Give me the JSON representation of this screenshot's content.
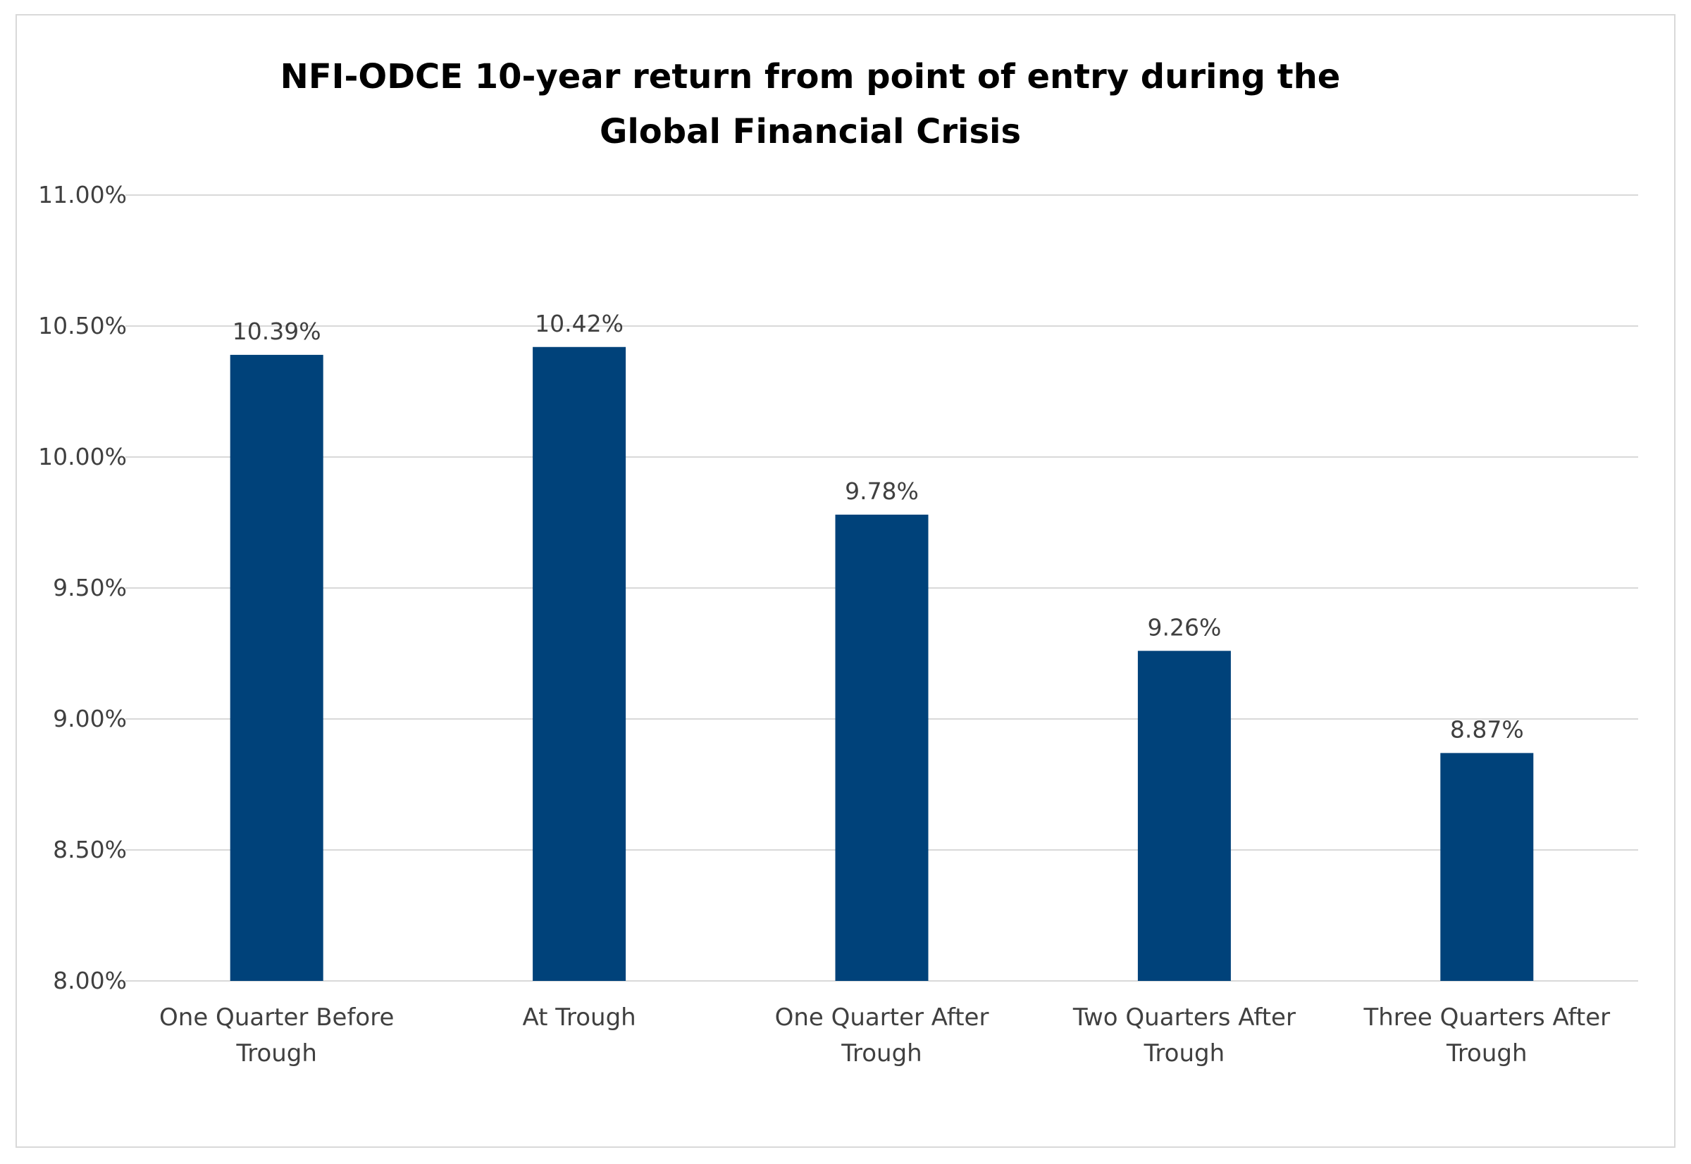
{
  "chart_data": {
    "type": "bar",
    "title_lines": [
      "NFI-ODCE 10-year return from point of entry during the",
      "Global Financial Crisis"
    ],
    "categories": [
      [
        "One Quarter Before",
        "Trough"
      ],
      [
        "At Trough"
      ],
      [
        "One Quarter After",
        "Trough"
      ],
      [
        "Two Quarters After",
        "Trough"
      ],
      [
        "Three Quarters After",
        "Trough"
      ]
    ],
    "values": [
      10.39,
      10.42,
      9.78,
      9.26,
      8.87
    ],
    "data_labels": [
      "10.39%",
      "10.42%",
      "9.78%",
      "9.26%",
      "8.87%"
    ],
    "yticks": [
      8.0,
      8.5,
      9.0,
      9.5,
      10.0,
      10.5,
      11.0
    ],
    "ytick_labels": [
      "8.00%",
      "8.50%",
      "9.00%",
      "9.50%",
      "10.00%",
      "10.50%",
      "11.00%"
    ],
    "ylim": [
      8.0,
      11.0
    ],
    "grid": true,
    "legend": "none",
    "bar_color": "#00427a",
    "grid_color": "#d9d9d9"
  }
}
